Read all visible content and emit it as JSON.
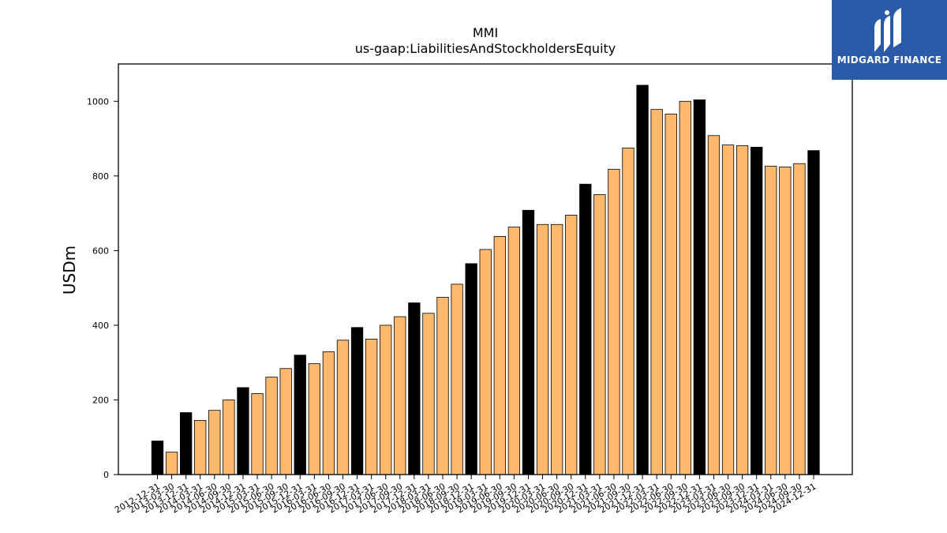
{
  "chart_data": {
    "type": "bar",
    "title": "MMI",
    "subtitle": "us-gaap:LiabilitiesAndStockholdersEquity",
    "xlabel": "",
    "ylabel": "USDm",
    "ylim": [
      0,
      1100
    ],
    "yticks": [
      0,
      200,
      400,
      600,
      800,
      1000
    ],
    "grid": false,
    "colors": {
      "annual": "#000000",
      "quarter": "#ffb86c",
      "edge": "#000000"
    },
    "categories": [
      "2012-12-31",
      "2013-03-30",
      "2013-12-31",
      "2014-03-31",
      "2014-06-30",
      "2014-09-30",
      "2014-12-31",
      "2015-03-31",
      "2015-06-30",
      "2015-09-30",
      "2015-12-31",
      "2016-03-31",
      "2016-06-30",
      "2016-09-30",
      "2016-12-31",
      "2017-03-31",
      "2017-06-30",
      "2017-09-30",
      "2017-12-31",
      "2018-03-31",
      "2018-06-30",
      "2018-09-30",
      "2018-12-31",
      "2019-03-31",
      "2019-06-30",
      "2019-09-30",
      "2019-12-31",
      "2020-03-31",
      "2020-06-30",
      "2020-09-30",
      "2020-12-31",
      "2021-03-31",
      "2021-06-30",
      "2021-09-30",
      "2021-12-31",
      "2022-03-31",
      "2022-06-30",
      "2022-09-30",
      "2022-12-31",
      "2023-03-31",
      "2023-06-30",
      "2023-09-30",
      "2023-12-31",
      "2024-03-31",
      "2024-06-30",
      "2024-09-30",
      "2024-12-31"
    ],
    "values": [
      90,
      60,
      166,
      145,
      172,
      200,
      233,
      217,
      261,
      284,
      320,
      297,
      329,
      360,
      394,
      363,
      400,
      423,
      460,
      432,
      475,
      510,
      565,
      603,
      638,
      663,
      708,
      670,
      670,
      695,
      778,
      750,
      818,
      875,
      1043,
      978,
      966,
      1000,
      1004,
      908,
      883,
      881,
      877,
      826,
      824,
      833,
      868
    ],
    "highlight": [
      0,
      2,
      6,
      10,
      14,
      18,
      22,
      26,
      30,
      34,
      38,
      42,
      46
    ]
  },
  "logo": {
    "text": "MIDGARD FINANCE"
  }
}
